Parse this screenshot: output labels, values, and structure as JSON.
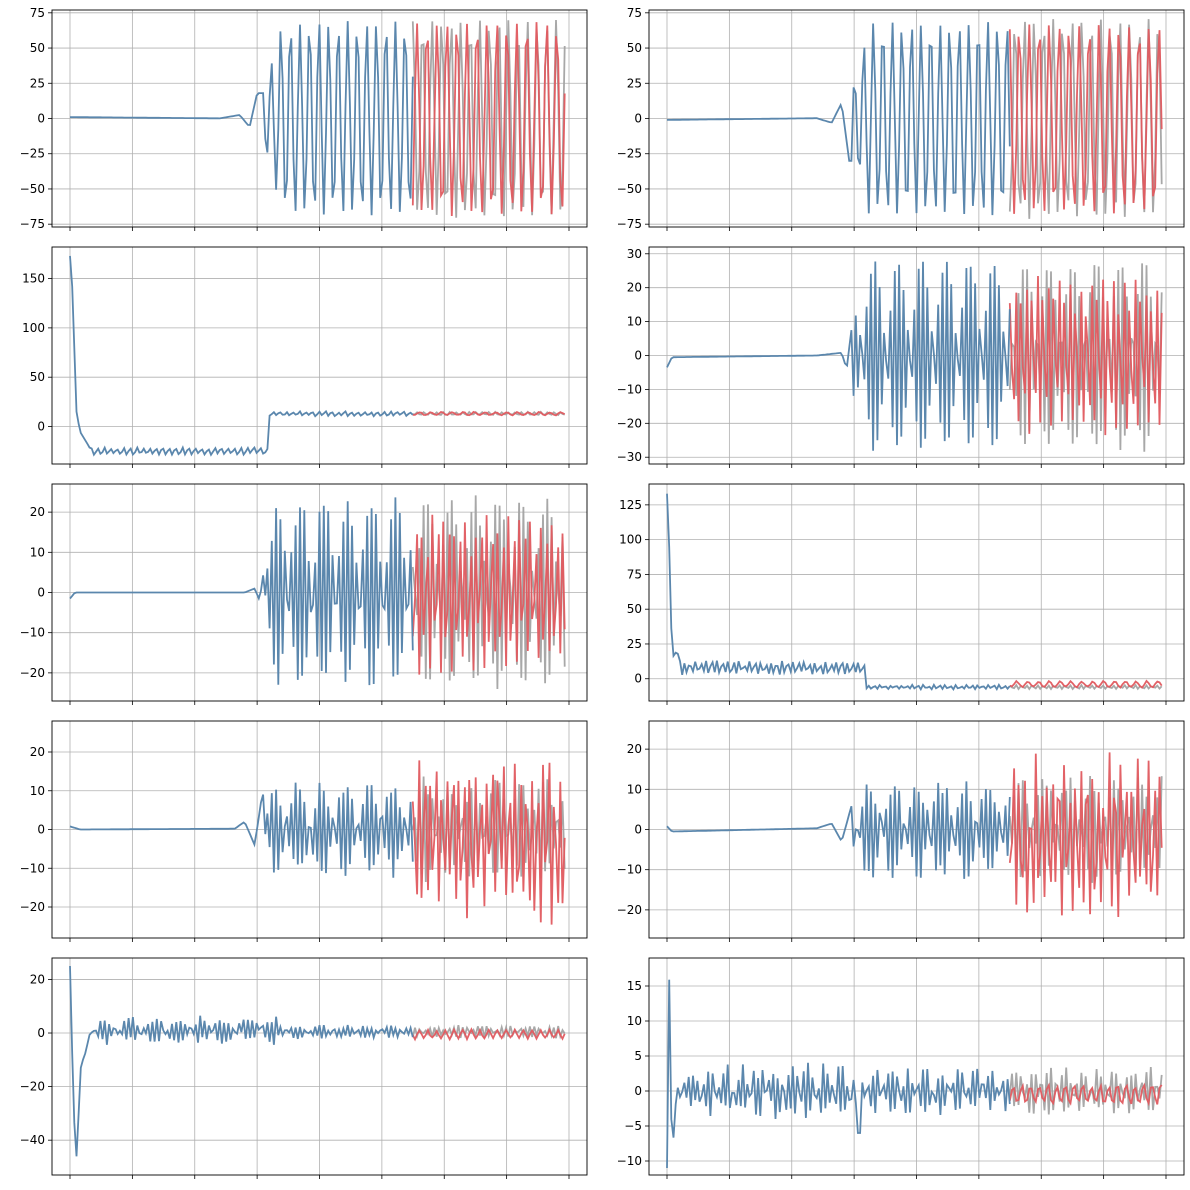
{
  "figure": {
    "rows": 5,
    "cols": 2,
    "colors": {
      "context": "#5b87ad",
      "truth": "#a3a3a3",
      "prediction": "#e05a5f",
      "grid": "#b0b0b0",
      "spine": "#000000"
    }
  },
  "chart_data": [
    {
      "type": "line",
      "panel": "row1-left",
      "grid": true,
      "ylim": [
        -77,
        77
      ],
      "yticks": [
        -75,
        -50,
        -25,
        0,
        25,
        50,
        75
      ],
      "x_ticks": 9,
      "series": [
        {
          "role": "context",
          "signal": {
            "kind": "osc",
            "seed": 1,
            "offset": 0,
            "amp": 68,
            "period": 4.4,
            "onset": 0.39,
            "rampLen": 0.05,
            "pre": [
              [
                0,
                1
              ],
              [
                0.3,
                0.1
              ],
              [
                0.34,
                2.5
              ],
              [
                0.36,
                -6
              ],
              [
                0.375,
                18
              ]
            ],
            "spike": null,
            "noise": 1.5
          }
        },
        {
          "role": "truth",
          "signal": {
            "kind": "osc",
            "seed": 2,
            "offset": 0,
            "amp": 70,
            "period": 4.4,
            "noise": 1.5
          }
        },
        {
          "role": "prediction",
          "signal": {
            "kind": "osc",
            "seed": 3,
            "offset": 0,
            "amp": 68,
            "period": 4.6,
            "noise": 2
          }
        }
      ]
    },
    {
      "type": "line",
      "panel": "row1-right",
      "grid": true,
      "ylim": [
        -77,
        77
      ],
      "yticks": [
        -75,
        -50,
        -25,
        0,
        25,
        50,
        75
      ],
      "x_ticks": 9,
      "series": [
        {
          "role": "context",
          "signal": {
            "kind": "osc",
            "seed": 4,
            "offset": 0,
            "amp": 68,
            "period": 4.4,
            "onset": 0.37,
            "rampLen": 0.05,
            "pre": [
              [
                0,
                -1
              ],
              [
                0.3,
                0.2
              ],
              [
                0.33,
                -3
              ],
              [
                0.35,
                11
              ],
              [
                0.365,
                -30
              ]
            ],
            "spike": null,
            "noise": 1.5
          }
        },
        {
          "role": "truth",
          "signal": {
            "kind": "osc",
            "seed": 5,
            "offset": 0,
            "amp": 70,
            "period": 4.4,
            "noise": 1.5
          }
        },
        {
          "role": "prediction",
          "signal": {
            "kind": "osc",
            "seed": 6,
            "offset": 0,
            "amp": 66,
            "period": 4.6,
            "noise": 2
          }
        }
      ]
    },
    {
      "type": "line",
      "panel": "row2-left",
      "grid": true,
      "ylim": [
        -38,
        182
      ],
      "yticks": [
        0,
        50,
        100,
        150
      ],
      "x_ticks": 9,
      "series": [
        {
          "role": "context",
          "signal": {
            "kind": "step",
            "seed": 7,
            "start": 173,
            "drop": [
              [
                0.006,
                130
              ],
              [
                0.012,
                18
              ],
              [
                0.02,
                -5
              ],
              [
                0.04,
                -22
              ]
            ],
            "levelA": -25,
            "ampA": 3,
            "stepAt": 0.4,
            "levelB": 13,
            "ampB": 2,
            "period": 3
          }
        },
        {
          "role": "truth",
          "signal": {
            "kind": "flat",
            "seed": 8,
            "level": 13,
            "amp": 1.5,
            "period": 3
          }
        },
        {
          "role": "prediction",
          "signal": {
            "kind": "flat",
            "seed": 9,
            "level": 13,
            "amp": 1.5,
            "period": 5
          }
        }
      ]
    },
    {
      "type": "line",
      "panel": "row2-right",
      "grid": true,
      "ylim": [
        -32,
        32
      ],
      "yticks": [
        -30,
        -20,
        -10,
        0,
        10,
        20,
        30
      ],
      "x_ticks": 9,
      "series": [
        {
          "role": "context",
          "signal": {
            "kind": "osc",
            "seed": 10,
            "offset": 0,
            "amp": 27,
            "period": 2.2,
            "onset": 0.37,
            "rampLen": 0.03,
            "pre": [
              [
                0,
                -3.5
              ],
              [
                0.01,
                -0.5
              ],
              [
                0.3,
                0
              ],
              [
                0.35,
                0.8
              ],
              [
                0.36,
                -4
              ],
              [
                0.37,
                8
              ]
            ],
            "spike": null,
            "noise": 1.5
          }
        },
        {
          "role": "truth",
          "signal": {
            "kind": "osc",
            "seed": 11,
            "offset": 0,
            "amp": 27,
            "period": 2.2,
            "noise": 1.5
          }
        },
        {
          "role": "prediction",
          "signal": {
            "kind": "osc",
            "seed": 12,
            "offset": 0,
            "amp": 22,
            "period": 2.5,
            "noise": 3
          }
        }
      ]
    },
    {
      "type": "line",
      "panel": "row3-left",
      "grid": true,
      "ylim": [
        -27,
        27
      ],
      "yticks": [
        -20,
        -10,
        0,
        10,
        20
      ],
      "x_ticks": 9,
      "series": [
        {
          "role": "context",
          "signal": {
            "kind": "osc",
            "seed": 13,
            "offset": 0,
            "amp": 22,
            "period": 2.2,
            "onset": 0.39,
            "rampLen": 0.03,
            "pre": [
              [
                0,
                -1.5
              ],
              [
                0.01,
                0
              ],
              [
                0.35,
                0
              ],
              [
                0.37,
                1
              ],
              [
                0.38,
                -2
              ],
              [
                0.39,
                7
              ]
            ],
            "spike": null,
            "noise": 2
          }
        },
        {
          "role": "truth",
          "signal": {
            "kind": "osc",
            "seed": 14,
            "offset": 0,
            "amp": 23,
            "period": 2.2,
            "noise": 1.5
          }
        },
        {
          "role": "prediction",
          "signal": {
            "kind": "osc",
            "seed": 15,
            "offset": 0,
            "amp": 18,
            "period": 2.5,
            "noise": 3
          }
        }
      ]
    },
    {
      "type": "line",
      "panel": "row3-right",
      "grid": true,
      "ylim": [
        -16,
        140
      ],
      "yticks": [
        0,
        25,
        50,
        75,
        100,
        125
      ],
      "x_ticks": 9,
      "series": [
        {
          "role": "context",
          "signal": {
            "kind": "step",
            "seed": 16,
            "start": 133,
            "drop": [
              [
                0.006,
                80
              ],
              [
                0.01,
                15
              ],
              [
                0.02,
                20
              ],
              [
                0.03,
                8
              ]
            ],
            "levelA": 8,
            "ampA": 4,
            "stepAt": 0.4,
            "levelB": -6,
            "ampB": 1.2,
            "period": 2.5
          }
        },
        {
          "role": "truth",
          "signal": {
            "kind": "flat",
            "seed": 17,
            "level": -6,
            "amp": 1.2,
            "period": 2.5
          }
        },
        {
          "role": "prediction",
          "signal": {
            "kind": "flat",
            "seed": 18,
            "level": -4,
            "amp": 2,
            "period": 5
          }
        }
      ]
    },
    {
      "type": "line",
      "panel": "row4-left",
      "grid": true,
      "ylim": [
        -28,
        28
      ],
      "yticks": [
        -20,
        -10,
        0,
        10,
        20
      ],
      "x_ticks": 9,
      "series": [
        {
          "role": "context",
          "signal": {
            "kind": "osc",
            "seed": 19,
            "offset": 0,
            "amp": 11,
            "period": 2.2,
            "onset": 0.39,
            "rampLen": 0.03,
            "pre": [
              [
                0,
                0.8
              ],
              [
                0.02,
                0
              ],
              [
                0.33,
                0.2
              ],
              [
                0.35,
                2
              ],
              [
                0.37,
                -4
              ],
              [
                0.385,
                9
              ]
            ],
            "spike": null,
            "noise": 2
          }
        },
        {
          "role": "truth",
          "signal": {
            "kind": "osc",
            "seed": 20,
            "offset": 0,
            "amp": 12,
            "period": 2.2,
            "noise": 2
          }
        },
        {
          "role": "prediction",
          "signal": {
            "kind": "osc",
            "seed": 21,
            "offset": -2,
            "amp": 18,
            "period": 2.6,
            "noise": 5
          }
        }
      ]
    },
    {
      "type": "line",
      "panel": "row4-right",
      "grid": true,
      "ylim": [
        -27,
        27
      ],
      "yticks": [
        -20,
        -10,
        0,
        10,
        20
      ],
      "x_ticks": 9,
      "series": [
        {
          "role": "context",
          "signal": {
            "kind": "osc",
            "seed": 22,
            "offset": 0,
            "amp": 11,
            "period": 2.2,
            "onset": 0.37,
            "rampLen": 0.03,
            "pre": [
              [
                0,
                0.8
              ],
              [
                0.01,
                -0.5
              ],
              [
                0.3,
                0.3
              ],
              [
                0.33,
                1.5
              ],
              [
                0.35,
                -3
              ],
              [
                0.37,
                6
              ]
            ],
            "spike": null,
            "noise": 2
          }
        },
        {
          "role": "truth",
          "signal": {
            "kind": "osc",
            "seed": 23,
            "offset": 0,
            "amp": 12,
            "period": 2.2,
            "noise": 2
          }
        },
        {
          "role": "prediction",
          "signal": {
            "kind": "osc",
            "seed": 24,
            "offset": -2,
            "amp": 17,
            "period": 2.6,
            "noise": 5
          }
        }
      ]
    },
    {
      "type": "line",
      "panel": "row5-left",
      "grid": true,
      "ylim": [
        -53,
        28
      ],
      "yticks": [
        -40,
        -20,
        0,
        20
      ],
      "x_ticks": 9,
      "series": [
        {
          "role": "context",
          "signal": {
            "kind": "step",
            "seed": 25,
            "start": 25,
            "drop": [
              [
                0.006,
                -20
              ],
              [
                0.012,
                -50
              ],
              [
                0.022,
                -12
              ],
              [
                0.03,
                -8
              ],
              [
                0.04,
                0
              ]
            ],
            "levelA": 1,
            "ampA": 4,
            "stepAt": 0.42,
            "levelB": 0.5,
            "ampB": 2,
            "period": 2.2
          }
        },
        {
          "role": "truth",
          "signal": {
            "kind": "flat",
            "seed": 26,
            "level": 0.5,
            "amp": 2,
            "period": 2.2
          }
        },
        {
          "role": "prediction",
          "signal": {
            "kind": "flat",
            "seed": 27,
            "level": -0.5,
            "amp": 1.5,
            "period": 4
          }
        }
      ]
    },
    {
      "type": "line",
      "panel": "row5-right",
      "grid": true,
      "ylim": [
        -12,
        19
      ],
      "yticks": [
        -10,
        -5,
        0,
        5,
        10,
        15
      ],
      "x_ticks": 9,
      "series": [
        {
          "role": "context",
          "signal": {
            "kind": "step",
            "seed": 28,
            "start": -11,
            "drop": [
              [
                0.004,
                17.5
              ],
              [
                0.01,
                -10
              ],
              [
                0.02,
                1
              ],
              [
                0.03,
                -2
              ]
            ],
            "levelA": 0,
            "ampA": 3,
            "stepAt": 0.39,
            "levelB": 0,
            "ampB": 2.5,
            "period": 2.3,
            "dip": [
              0.385,
              -6
            ]
          }
        },
        {
          "role": "truth",
          "signal": {
            "kind": "flat",
            "seed": 29,
            "level": 0,
            "amp": 3,
            "period": 2.3
          }
        },
        {
          "role": "prediction",
          "signal": {
            "kind": "flat",
            "seed": 30,
            "level": -0.5,
            "amp": 1.3,
            "period": 4
          }
        }
      ]
    }
  ]
}
